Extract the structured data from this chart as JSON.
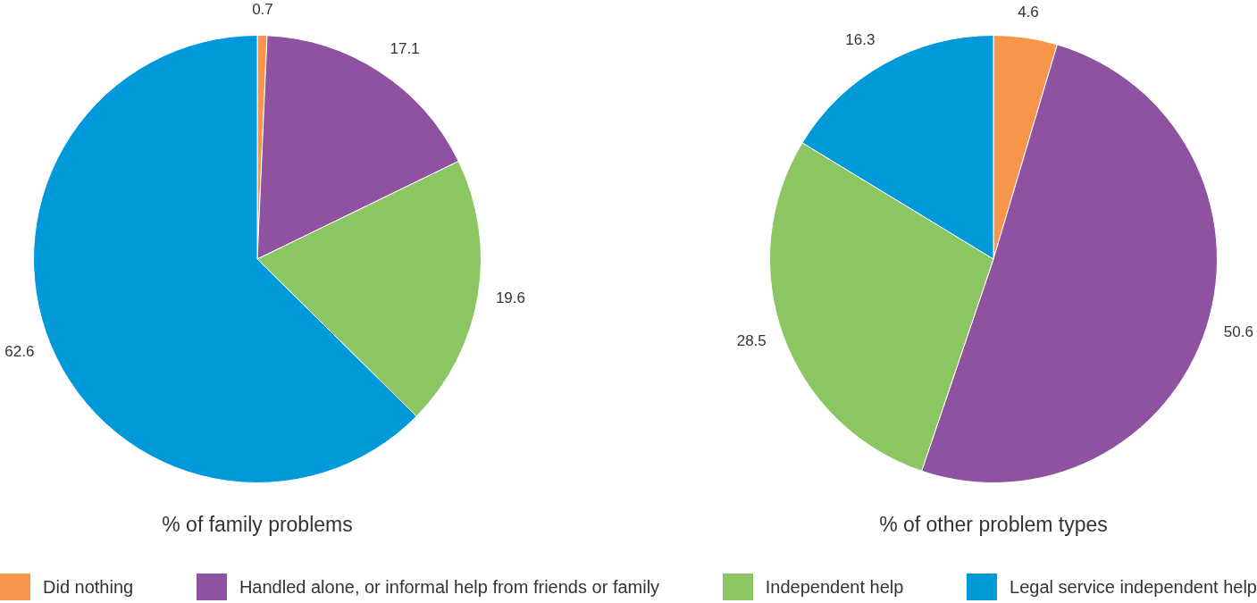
{
  "chart_data": [
    {
      "type": "pie",
      "title": "% of family problems",
      "categories": [
        "Did nothing",
        "Handled alone, or informal help from friends or family",
        "Independent help",
        "Legal service independent help"
      ],
      "values": [
        0.7,
        17.1,
        19.6,
        62.6
      ],
      "colors": [
        "#f7964a",
        "#8e52a0",
        "#8bc663",
        "#009ada"
      ],
      "data_labels": true,
      "legend": "bottom"
    },
    {
      "type": "pie",
      "title": "% of other problem types",
      "categories": [
        null,
        null,
        null,
        null
      ],
      "values": [
        4.6,
        50.6,
        28.5,
        16.3
      ],
      "colors": [
        "#f7964a",
        "#8e52a0",
        "#8bc663",
        "#009ada"
      ],
      "data_labels": true
    }
  ]
}
